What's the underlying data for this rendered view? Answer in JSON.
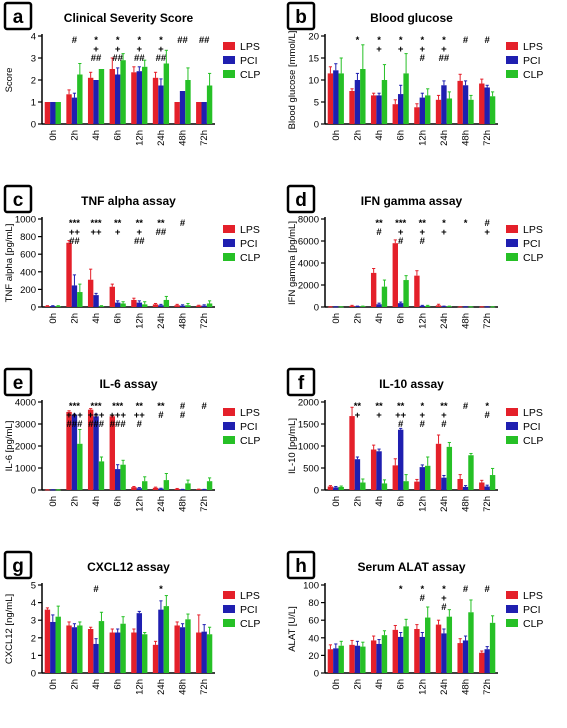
{
  "figure": {
    "legend_labels": [
      "LPS",
      "PCI",
      "CLP"
    ],
    "colors": {
      "LPS": "#e4202a",
      "PCI": "#1f1fb0",
      "CLP": "#26c026",
      "axis": "#000000",
      "panel_letter_border": "#000000"
    }
  },
  "chart_data": [
    {
      "panel": "a",
      "type": "bar",
      "title": "Clinical Severity Score",
      "ylabel": "Score",
      "xlabel": "",
      "categories": [
        "0h",
        "2h",
        "4h",
        "6h",
        "12h",
        "24h",
        "48h",
        "72h"
      ],
      "ylim": [
        0,
        4
      ],
      "yticks": [
        0,
        1,
        2,
        3,
        4
      ],
      "grid": false,
      "legend": "right",
      "series": [
        {
          "name": "LPS",
          "values": [
            1.0,
            1.35,
            2.1,
            2.5,
            2.35,
            2.1,
            1.0,
            1.0
          ],
          "errors": [
            0,
            0.2,
            0.25,
            0.5,
            0.25,
            0.25,
            0,
            0
          ]
        },
        {
          "name": "PCI",
          "values": [
            1.0,
            1.2,
            2.0,
            2.25,
            2.4,
            1.75,
            1.5,
            1.0
          ],
          "errors": [
            0,
            0.2,
            0,
            0.3,
            0.2,
            0.3,
            0,
            0
          ]
        },
        {
          "name": "CLP",
          "values": [
            1.0,
            2.25,
            2.5,
            2.9,
            2.6,
            2.75,
            2.0,
            1.75
          ],
          "errors": [
            0,
            0.5,
            0,
            0.3,
            0.3,
            0.6,
            0.55,
            0.55
          ]
        }
      ],
      "annotations": [
        {
          "category": "2h",
          "lines": [
            "#"
          ]
        },
        {
          "category": "4h",
          "lines": [
            "*",
            "+",
            "##"
          ]
        },
        {
          "category": "6h",
          "lines": [
            "*",
            "+",
            "##"
          ]
        },
        {
          "category": "12h",
          "lines": [
            "*",
            "+",
            "##"
          ]
        },
        {
          "category": "24h",
          "lines": [
            "*",
            "+",
            "##"
          ]
        },
        {
          "category": "48h",
          "lines": [
            "##"
          ]
        },
        {
          "category": "72h",
          "lines": [
            "##"
          ]
        }
      ]
    },
    {
      "panel": "b",
      "type": "bar",
      "title": "Blood glucose",
      "ylabel": "Blood glucose [mmol/L]",
      "xlabel": "",
      "categories": [
        "0h",
        "2h",
        "4h",
        "6h",
        "12h",
        "24h",
        "48h",
        "72h"
      ],
      "ylim": [
        0,
        20
      ],
      "yticks": [
        0,
        5,
        10,
        15,
        20
      ],
      "grid": false,
      "legend": "right",
      "series": [
        {
          "name": "LPS",
          "values": [
            11.5,
            7.5,
            6.5,
            4.5,
            3.8,
            5.5,
            9.8,
            9.2
          ],
          "errors": [
            1.5,
            0.5,
            0.5,
            1.0,
            0.8,
            1.0,
            1.5,
            1.0
          ]
        },
        {
          "name": "PCI",
          "values": [
            12.2,
            10.0,
            6.5,
            6.8,
            6.0,
            8.8,
            8.8,
            8.3
          ],
          "errors": [
            1.5,
            1.5,
            0.5,
            2.0,
            1.0,
            1.0,
            1.0,
            0.5
          ]
        },
        {
          "name": "CLP",
          "values": [
            11.5,
            12.5,
            10.0,
            11.5,
            6.5,
            5.8,
            5.5,
            6.3
          ],
          "errors": [
            3.5,
            5.5,
            3.5,
            4.5,
            1.5,
            1.5,
            1.0,
            1.0
          ]
        }
      ],
      "annotations": [
        {
          "category": "2h",
          "lines": [
            "*"
          ]
        },
        {
          "category": "4h",
          "lines": [
            "*",
            "+"
          ]
        },
        {
          "category": "6h",
          "lines": [
            "*",
            "+"
          ]
        },
        {
          "category": "12h",
          "lines": [
            "*",
            "+",
            "#"
          ]
        },
        {
          "category": "24h",
          "lines": [
            "*",
            "+",
            "##"
          ]
        },
        {
          "category": "48h",
          "lines": [
            "#"
          ]
        },
        {
          "category": "72h",
          "lines": [
            "#"
          ]
        }
      ]
    },
    {
      "panel": "c",
      "type": "bar",
      "title": "TNF alpha assay",
      "ylabel": "TNF alpha [pg/mL]",
      "xlabel": "",
      "categories": [
        "0h",
        "2h",
        "4h",
        "6h",
        "12h",
        "24h",
        "48h",
        "72h"
      ],
      "ylim": [
        0,
        1000
      ],
      "yticks": [
        0,
        200,
        400,
        600,
        800,
        1000
      ],
      "grid": false,
      "legend": "right",
      "series": [
        {
          "name": "LPS",
          "values": [
            10,
            730,
            310,
            230,
            80,
            30,
            20,
            15
          ],
          "errors": [
            5,
            25,
            120,
            30,
            20,
            10,
            10,
            5
          ],
          "significance": []
        },
        {
          "name": "PCI",
          "values": [
            10,
            245,
            135,
            50,
            50,
            20,
            15,
            15
          ],
          "errors": [
            5,
            120,
            20,
            20,
            20,
            10,
            10,
            10
          ]
        },
        {
          "name": "CLP",
          "values": [
            10,
            170,
            10,
            40,
            30,
            80,
            20,
            40
          ],
          "errors": [
            5,
            90,
            5,
            20,
            30,
            40,
            20,
            30
          ]
        }
      ],
      "annotations": [
        {
          "category": "2h",
          "lines": [
            "***",
            "++",
            "##"
          ]
        },
        {
          "category": "4h",
          "lines": [
            "***",
            "++"
          ]
        },
        {
          "category": "6h",
          "lines": [
            "**",
            "+"
          ]
        },
        {
          "category": "12h",
          "lines": [
            "**",
            "+",
            "##"
          ]
        },
        {
          "category": "24h",
          "lines": [
            "**",
            "##"
          ]
        },
        {
          "category": "48h",
          "lines": [
            "#"
          ]
        }
      ]
    },
    {
      "panel": "d",
      "type": "bar",
      "title": "IFN gamma assay",
      "ylabel": "IFN gamma [pg/mL]",
      "xlabel": "",
      "categories": [
        "0h",
        "2h",
        "4h",
        "6h",
        "12h",
        "24h",
        "48h",
        "72h"
      ],
      "ylim": [
        0,
        8000
      ],
      "yticks": [
        0,
        2000,
        4000,
        6000,
        8000
      ],
      "grid": false,
      "legend": "right",
      "series": [
        {
          "name": "LPS",
          "values": [
            20,
            100,
            3100,
            5800,
            2850,
            150,
            20,
            20
          ],
          "errors": [
            10,
            50,
            400,
            300,
            450,
            100,
            10,
            10
          ]
        },
        {
          "name": "PCI",
          "values": [
            20,
            50,
            250,
            350,
            100,
            50,
            20,
            20
          ],
          "errors": [
            10,
            30,
            100,
            100,
            50,
            30,
            10,
            10
          ]
        },
        {
          "name": "CLP",
          "values": [
            20,
            50,
            1850,
            2450,
            100,
            50,
            20,
            20
          ],
          "errors": [
            10,
            30,
            600,
            400,
            50,
            30,
            10,
            10
          ]
        }
      ],
      "annotations": [
        {
          "category": "4h",
          "lines": [
            "**",
            "#"
          ]
        },
        {
          "category": "6h",
          "lines": [
            "***",
            "+",
            "#"
          ]
        },
        {
          "category": "12h",
          "lines": [
            "**",
            "+",
            "#"
          ]
        },
        {
          "category": "24h",
          "lines": [
            "*",
            "+"
          ]
        },
        {
          "category": "48h",
          "lines": [
            "*"
          ]
        },
        {
          "category": "72h",
          "lines": [
            "#",
            "+"
          ]
        }
      ]
    },
    {
      "panel": "e",
      "type": "bar",
      "title": "IL-6 assay",
      "ylabel": "IL-6 [pg/mL]",
      "xlabel": "",
      "categories": [
        "0h",
        "2h",
        "4h",
        "6h",
        "12h",
        "24h",
        "48h",
        "72h"
      ],
      "ylim": [
        0,
        4000
      ],
      "yticks": [
        0,
        1000,
        2000,
        3000,
        4000
      ],
      "grid": false,
      "legend": "right",
      "series": [
        {
          "name": "LPS",
          "values": [
            10,
            3550,
            3650,
            3350,
            130,
            100,
            50,
            30
          ],
          "errors": [
            5,
            50,
            50,
            30,
            30,
            30,
            20,
            10
          ]
        },
        {
          "name": "PCI",
          "values": [
            10,
            3400,
            3350,
            950,
            80,
            60,
            20,
            20
          ],
          "errors": [
            5,
            50,
            100,
            200,
            30,
            20,
            10,
            10
          ]
        },
        {
          "name": "CLP",
          "values": [
            10,
            2100,
            1300,
            1150,
            400,
            450,
            300,
            400
          ],
          "errors": [
            5,
            650,
            200,
            200,
            200,
            300,
            150,
            150
          ]
        }
      ],
      "annotations": [
        {
          "category": "2h",
          "lines": [
            "***",
            "+++",
            "###"
          ]
        },
        {
          "category": "4h",
          "lines": [
            "***",
            "+++",
            "###"
          ]
        },
        {
          "category": "6h",
          "lines": [
            "***",
            "+++",
            "###"
          ]
        },
        {
          "category": "12h",
          "lines": [
            "**",
            "++",
            "#"
          ]
        },
        {
          "category": "24h",
          "lines": [
            "**",
            "#"
          ]
        },
        {
          "category": "48h",
          "lines": [
            "#",
            "#"
          ]
        },
        {
          "category": "72h",
          "lines": [
            "#"
          ]
        }
      ]
    },
    {
      "panel": "f",
      "type": "bar",
      "title": "IL-10 assay",
      "ylabel": "IL-10 [pg/mL]",
      "xlabel": "",
      "categories": [
        "0h",
        "2h",
        "4h",
        "6h",
        "12h",
        "24h",
        "48h",
        "72h"
      ],
      "ylim": [
        0,
        2000
      ],
      "yticks": [
        0,
        500,
        1000,
        1500,
        2000
      ],
      "grid": false,
      "legend": "right",
      "series": [
        {
          "name": "LPS",
          "values": [
            80,
            1680,
            920,
            560,
            190,
            1050,
            250,
            170
          ],
          "errors": [
            20,
            200,
            100,
            150,
            50,
            200,
            100,
            50
          ]
        },
        {
          "name": "PCI",
          "values": [
            60,
            700,
            880,
            1370,
            520,
            280,
            70,
            80
          ],
          "errors": [
            20,
            50,
            50,
            30,
            50,
            50,
            30,
            30
          ]
        },
        {
          "name": "CLP",
          "values": [
            70,
            170,
            150,
            200,
            550,
            980,
            790,
            340
          ],
          "errors": [
            20,
            80,
            80,
            150,
            200,
            100,
            40,
            150
          ]
        }
      ],
      "annotations": [
        {
          "category": "2h",
          "lines": [
            "**",
            "+"
          ]
        },
        {
          "category": "4h",
          "lines": [
            "**",
            "+"
          ]
        },
        {
          "category": "6h",
          "lines": [
            "**",
            "++",
            "#"
          ]
        },
        {
          "category": "12h",
          "lines": [
            "*",
            "+",
            "#"
          ]
        },
        {
          "category": "24h",
          "lines": [
            "**",
            "+",
            "#"
          ]
        },
        {
          "category": "48h",
          "lines": [
            "#"
          ]
        },
        {
          "category": "72h",
          "lines": [
            "*",
            "#"
          ]
        }
      ]
    },
    {
      "panel": "g",
      "type": "bar",
      "title": "CXCL12 assay",
      "ylabel": "CXCL12 [ng/mL]",
      "xlabel": "",
      "categories": [
        "0h",
        "2h",
        "4h",
        "6h",
        "12h",
        "24h",
        "48h",
        "72h"
      ],
      "ylim": [
        0,
        5
      ],
      "yticks": [
        0,
        1,
        2,
        3,
        4,
        5
      ],
      "grid": false,
      "legend": "right",
      "series": [
        {
          "name": "LPS",
          "values": [
            3.6,
            2.7,
            2.5,
            2.3,
            2.3,
            1.6,
            2.7,
            2.3
          ],
          "errors": [
            0.1,
            0.2,
            0.1,
            0.2,
            0.2,
            0.2,
            0.2,
            1.0
          ]
        },
        {
          "name": "PCI",
          "values": [
            2.9,
            2.6,
            1.65,
            2.3,
            3.4,
            3.6,
            2.6,
            2.35
          ],
          "errors": [
            0.4,
            0.2,
            0.3,
            0.2,
            0.1,
            0.5,
            0.2,
            0.4
          ]
        },
        {
          "name": "CLP",
          "values": [
            3.2,
            2.7,
            2.95,
            2.8,
            2.2,
            3.8,
            3.05,
            2.2
          ],
          "errors": [
            0.6,
            0.2,
            0.5,
            0.4,
            0.1,
            0.6,
            0.3,
            0.4
          ]
        }
      ],
      "annotations": [
        {
          "category": "4h",
          "lines": [
            "#"
          ]
        },
        {
          "category": "24h",
          "lines": [
            "*"
          ]
        }
      ]
    },
    {
      "panel": "h",
      "type": "bar",
      "title": "Serum ALAT assay",
      "ylabel": "ALAT [U/L]",
      "xlabel": "",
      "categories": [
        "0h",
        "2h",
        "4h",
        "6h",
        "12h",
        "24h",
        "48h",
        "72h"
      ],
      "ylim": [
        0,
        100
      ],
      "yticks": [
        0,
        20,
        40,
        60,
        80,
        100
      ],
      "grid": false,
      "legend": "right",
      "series": [
        {
          "name": "LPS",
          "values": [
            27,
            32,
            37,
            49,
            50,
            55,
            34,
            23
          ],
          "errors": [
            5,
            5,
            5,
            5,
            5,
            5,
            5,
            2
          ]
        },
        {
          "name": "PCI",
          "values": [
            28,
            31,
            33,
            41,
            41,
            45,
            37,
            27
          ],
          "errors": [
            5,
            5,
            5,
            5,
            5,
            5,
            5,
            3
          ]
        },
        {
          "name": "CLP",
          "values": [
            31,
            30,
            43,
            53,
            63,
            64,
            69,
            57
          ],
          "errors": [
            5,
            5,
            5,
            8,
            12,
            8,
            14,
            8
          ]
        }
      ],
      "annotations": [
        {
          "category": "6h",
          "lines": [
            "*"
          ]
        },
        {
          "category": "12h",
          "lines": [
            "*",
            "#"
          ]
        },
        {
          "category": "24h",
          "lines": [
            "*",
            "+",
            "#"
          ]
        },
        {
          "category": "48h",
          "lines": [
            "#"
          ]
        },
        {
          "category": "72h",
          "lines": [
            "#"
          ]
        }
      ]
    }
  ]
}
